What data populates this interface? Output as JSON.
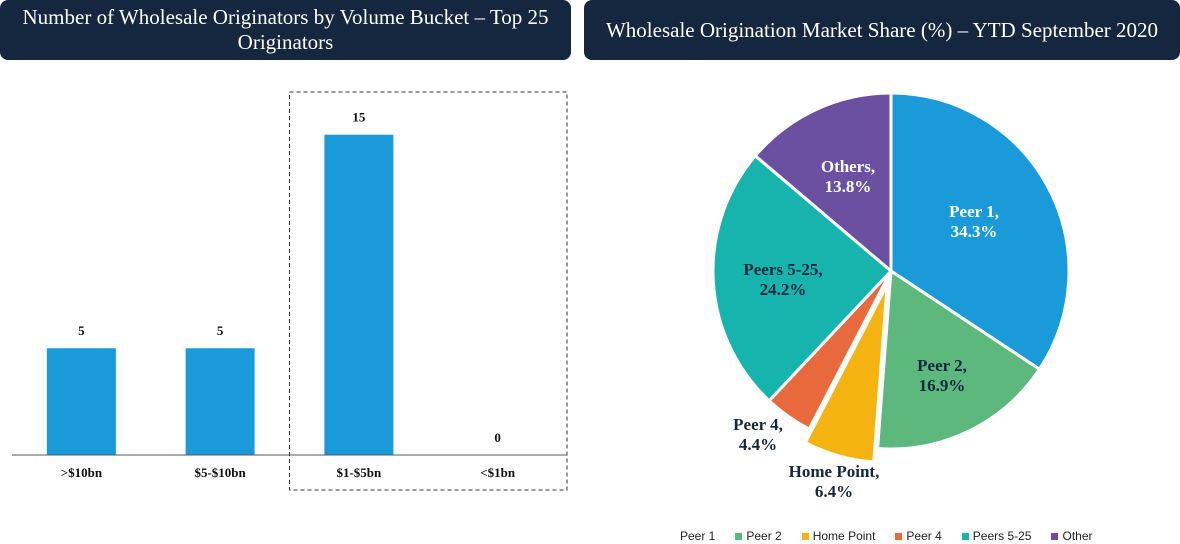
{
  "chart_data": [
    {
      "type": "bar",
      "title": "Number of Wholesale Originators by Volume Bucket – Top 25 Originators",
      "categories": [
        ">$10bn",
        "$5-$10bn",
        "$1-$5bn",
        "<$1bn"
      ],
      "values": [
        5,
        5,
        15,
        0
      ],
      "data_labels": [
        "5",
        "5",
        "15",
        "0"
      ],
      "highlighted_categories": [
        "$1-$5bn",
        "<$1bn"
      ],
      "ylim": [
        0,
        17
      ],
      "bar_color": "#1b9ad9",
      "xlabel": "",
      "ylabel": "",
      "grid": false
    },
    {
      "type": "pie",
      "title": "Wholesale Origination Market Share (%) – YTD September 2020",
      "slices": [
        {
          "name": "Peer 1",
          "value": 34.3,
          "label_line1": "Peer 1,",
          "label_line2": "34.3%",
          "color": "#1b9ad9",
          "label_color": "#ffffff",
          "exploded": false
        },
        {
          "name": "Peer 2",
          "value": 16.9,
          "label_line1": "Peer 2,",
          "label_line2": "16.9%",
          "color": "#5cb87d",
          "label_color": "#15273f",
          "exploded": false
        },
        {
          "name": "Home Point",
          "value": 6.4,
          "label_line1": "Home Point,",
          "label_line2": "6.4%",
          "color": "#f5b311",
          "label_color": "#15273f",
          "exploded": true
        },
        {
          "name": "Peer 4",
          "value": 4.4,
          "label_line1": "Peer 4,",
          "label_line2": "4.4%",
          "color": "#e86a3c",
          "label_color": "#15273f",
          "exploded": false
        },
        {
          "name": "Peers 5-25",
          "value": 24.2,
          "label_line1": "Peers 5-25,",
          "label_line2": "24.2%",
          "color": "#17b3ad",
          "label_color": "#15273f",
          "exploded": false
        },
        {
          "name": "Others",
          "value": 13.8,
          "label_line1": "Others,",
          "label_line2": "13.8%",
          "color": "#6b4fa0",
          "label_color": "#ffffff",
          "exploded": false
        }
      ],
      "legend": {
        "position": "bottom",
        "entries": [
          {
            "label": "Peer 1",
            "color": "#1b9ad9"
          },
          {
            "label": "Peer 2",
            "color": "#5cb87d"
          },
          {
            "label": "Home Point",
            "color": "#f5b311"
          },
          {
            "label": "Peer 4",
            "color": "#e86a3c"
          },
          {
            "label": "Peers 5-25",
            "color": "#17b3ad"
          },
          {
            "label": "Other",
            "color": "#6b4fa0"
          }
        ]
      }
    }
  ]
}
